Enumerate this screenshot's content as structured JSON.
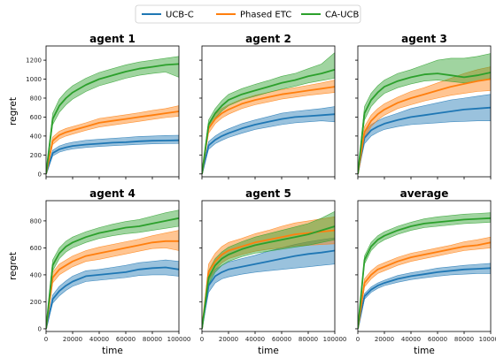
{
  "chart_data": {
    "type": "line",
    "legend": {
      "placement": "top-center",
      "entries": [
        {
          "name": "UCB-C",
          "color": "#1f77b4"
        },
        {
          "name": "Phased ETC",
          "color": "#ff7f0e"
        },
        {
          "name": "CA-UCB",
          "color": "#2ca02c"
        }
      ]
    },
    "xlabel": "time",
    "ylabel": "regret",
    "xlim": [
      0,
      100000
    ],
    "x_ticks": [
      0,
      20000,
      40000,
      60000,
      80000,
      100000
    ],
    "x_tick_labels": [
      "0",
      "20000",
      "40000",
      "60000",
      "80000",
      "100000"
    ],
    "shared_y_rows": true,
    "x": [
      0,
      5000,
      10000,
      15000,
      20000,
      30000,
      40000,
      50000,
      60000,
      70000,
      80000,
      90000,
      100000
    ],
    "rows": [
      {
        "ylim": [
          -30,
          1350
        ],
        "y_ticks": [
          0,
          200,
          400,
          600,
          800,
          1000,
          1200
        ],
        "y_tick_labels": [
          "0",
          "200",
          "400",
          "600",
          "800",
          "1000",
          "1200"
        ]
      },
      {
        "ylim": [
          -20,
          950
        ],
        "y_ticks": [
          0,
          200,
          400,
          600,
          800
        ],
        "y_tick_labels": [
          "0",
          "200",
          "400",
          "600",
          "800"
        ]
      }
    ],
    "panels": [
      {
        "title": "agent 1",
        "row": 0,
        "series": [
          {
            "name": "UCB-C",
            "values": [
              0,
              220,
              260,
              280,
              295,
              310,
              320,
              330,
              335,
              345,
              350,
              352,
              355
            ],
            "lower": [
              0,
              190,
              230,
              250,
              265,
              280,
              290,
              298,
              305,
              312,
              318,
              320,
              322
            ],
            "upper": [
              0,
              250,
              295,
              320,
              335,
              355,
              365,
              375,
              385,
              395,
              400,
              405,
              408
            ]
          },
          {
            "name": "Phased ETC",
            "values": [
              0,
              350,
              410,
              440,
              460,
              500,
              540,
              560,
              580,
              600,
              620,
              640,
              660
            ],
            "lower": [
              0,
              310,
              370,
              400,
              420,
              460,
              495,
              515,
              535,
              555,
              575,
              595,
              610
            ],
            "upper": [
              0,
              390,
              450,
              480,
              500,
              540,
              585,
              605,
              625,
              645,
              670,
              690,
              720
            ]
          },
          {
            "name": "CA-UCB",
            "values": [
              0,
              580,
              720,
              800,
              860,
              940,
              1000,
              1040,
              1080,
              1110,
              1130,
              1150,
              1160
            ],
            "lower": [
              0,
              520,
              650,
              730,
              790,
              870,
              930,
              970,
              1010,
              1040,
              1060,
              1075,
              1020
            ],
            "upper": [
              0,
              640,
              790,
              870,
              930,
              1010,
              1070,
              1110,
              1150,
              1180,
              1200,
              1220,
              1240
            ]
          }
        ]
      },
      {
        "title": "agent 2",
        "row": 0,
        "series": [
          {
            "name": "UCB-C",
            "values": [
              0,
              300,
              360,
              400,
              430,
              480,
              520,
              550,
              580,
              600,
              610,
              620,
              630
            ],
            "lower": [
              0,
              260,
              320,
              355,
              385,
              430,
              470,
              495,
              520,
              540,
              550,
              560,
              550
            ],
            "upper": [
              0,
              340,
              400,
              445,
              475,
              530,
              570,
              605,
              640,
              660,
              675,
              690,
              710
            ]
          },
          {
            "name": "Phased ETC",
            "values": [
              0,
              480,
              580,
              640,
              680,
              740,
              780,
              810,
              840,
              860,
              880,
              900,
              920
            ],
            "lower": [
              0,
              430,
              530,
              590,
              630,
              690,
              730,
              760,
              790,
              810,
              830,
              845,
              860
            ],
            "upper": [
              0,
              530,
              630,
              690,
              730,
              790,
              830,
              860,
              890,
              910,
              935,
              960,
              990
            ]
          },
          {
            "name": "CA-UCB",
            "values": [
              0,
              520,
              640,
              720,
              780,
              840,
              880,
              920,
              960,
              990,
              1030,
              1060,
              1100
            ],
            "lower": [
              0,
              470,
              590,
              665,
              720,
              780,
              820,
              860,
              895,
              925,
              960,
              985,
              1010
            ],
            "upper": [
              0,
              570,
              690,
              775,
              840,
              900,
              945,
              985,
              1030,
              1060,
              1110,
              1160,
              1280
            ]
          }
        ]
      },
      {
        "title": "agent 3",
        "row": 0,
        "series": [
          {
            "name": "UCB-C",
            "values": [
              0,
              380,
              460,
              500,
              530,
              570,
              600,
              620,
              640,
              660,
              680,
              690,
              700
            ],
            "lower": [
              0,
              320,
              400,
              440,
              470,
              500,
              520,
              530,
              540,
              550,
              555,
              560,
              560
            ],
            "upper": [
              0,
              440,
              520,
              560,
              595,
              640,
              690,
              720,
              750,
              780,
              800,
              820,
              840
            ]
          },
          {
            "name": "Phased ETC",
            "values": [
              0,
              440,
              560,
              630,
              680,
              750,
              800,
              840,
              880,
              920,
              950,
              980,
              1000
            ],
            "lower": [
              0,
              380,
              500,
              570,
              620,
              690,
              730,
              770,
              800,
              830,
              850,
              870,
              880
            ],
            "upper": [
              0,
              500,
              620,
              690,
              740,
              810,
              870,
              910,
              960,
              1010,
              1060,
              1100,
              1130
            ]
          },
          {
            "name": "CA-UCB",
            "values": [
              0,
              640,
              780,
              860,
              920,
              980,
              1020,
              1050,
              1060,
              1040,
              1020,
              1040,
              1070
            ],
            "lower": [
              0,
              570,
              710,
              790,
              850,
              910,
              950,
              980,
              990,
              975,
              960,
              980,
              1010
            ],
            "upper": [
              0,
              710,
              850,
              930,
              990,
              1060,
              1100,
              1150,
              1200,
              1220,
              1220,
              1240,
              1270
            ]
          }
        ]
      },
      {
        "title": "agent 4",
        "row": 1,
        "series": [
          {
            "name": "UCB-C",
            "values": [
              0,
              220,
              280,
              320,
              350,
              390,
              400,
              410,
              420,
              440,
              450,
              455,
              440
            ],
            "lower": [
              0,
              190,
              245,
              285,
              315,
              350,
              360,
              370,
              380,
              395,
              400,
              400,
              390
            ],
            "upper": [
              0,
              250,
              315,
              355,
              390,
              430,
              440,
              455,
              470,
              490,
              500,
              510,
              500
            ]
          },
          {
            "name": "Phased ETC",
            "values": [
              0,
              380,
              440,
              470,
              500,
              540,
              560,
              580,
              600,
              620,
              640,
              650,
              650
            ],
            "lower": [
              0,
              340,
              400,
              430,
              460,
              500,
              515,
              535,
              555,
              575,
              595,
              600,
              580
            ],
            "upper": [
              0,
              420,
              480,
              510,
              540,
              580,
              605,
              625,
              645,
              665,
              690,
              710,
              730
            ]
          },
          {
            "name": "CA-UCB",
            "values": [
              0,
              470,
              560,
              610,
              640,
              680,
              710,
              730,
              750,
              760,
              780,
              800,
              820
            ],
            "lower": [
              0,
              430,
              520,
              570,
              600,
              640,
              670,
              690,
              705,
              715,
              730,
              745,
              760
            ],
            "upper": [
              0,
              510,
              600,
              650,
              680,
              720,
              750,
              775,
              795,
              810,
              835,
              860,
              880
            ]
          }
        ]
      },
      {
        "title": "agent 5",
        "row": 1,
        "series": [
          {
            "name": "UCB-C",
            "values": [
              0,
              320,
              390,
              420,
              440,
              460,
              480,
              500,
              520,
              540,
              555,
              565,
              580
            ],
            "lower": [
              0,
              270,
              340,
              370,
              385,
              405,
              420,
              430,
              440,
              450,
              460,
              470,
              480
            ],
            "upper": [
              0,
              370,
              440,
              470,
              495,
              520,
              545,
              575,
              600,
              625,
              645,
              660,
              675
            ]
          },
          {
            "name": "Phased ETC",
            "values": [
              0,
              420,
              500,
              550,
              580,
              610,
              640,
              660,
              680,
              700,
              710,
              720,
              730
            ],
            "lower": [
              0,
              360,
              440,
              490,
              520,
              550,
              575,
              590,
              600,
              615,
              620,
              625,
              630
            ],
            "upper": [
              0,
              480,
              560,
              610,
              640,
              670,
              705,
              730,
              760,
              785,
              800,
              815,
              830
            ]
          },
          {
            "name": "CA-UCB",
            "values": [
              0,
              380,
              470,
              520,
              550,
              590,
              620,
              640,
              660,
              680,
              700,
              730,
              760
            ],
            "lower": [
              0,
              330,
              420,
              470,
              500,
              535,
              560,
              575,
              590,
              605,
              620,
              640,
              660
            ],
            "upper": [
              0,
              430,
              520,
              570,
              605,
              645,
              680,
              705,
              730,
              755,
              780,
              820,
              870
            ]
          }
        ]
      },
      {
        "title": "average",
        "row": 1,
        "series": [
          {
            "name": "UCB-C",
            "values": [
              0,
              240,
              290,
              320,
              340,
              370,
              390,
              405,
              420,
              430,
              440,
              445,
              450
            ],
            "lower": [
              0,
              220,
              270,
              300,
              320,
              345,
              365,
              378,
              390,
              400,
              405,
              410,
              410
            ],
            "upper": [
              0,
              260,
              310,
              340,
              360,
              395,
              415,
              432,
              450,
              460,
              470,
              478,
              485
            ]
          },
          {
            "name": "Phased ETC",
            "values": [
              0,
              340,
              400,
              440,
              460,
              500,
              530,
              550,
              570,
              590,
              610,
              620,
              640
            ],
            "lower": [
              0,
              310,
              370,
              410,
              430,
              470,
              500,
              520,
              540,
              560,
              580,
              590,
              600
            ],
            "upper": [
              0,
              370,
              430,
              470,
              490,
              530,
              560,
              580,
              600,
              620,
              645,
              660,
              680
            ]
          },
          {
            "name": "CA-UCB",
            "values": [
              0,
              510,
              610,
              660,
              690,
              730,
              760,
              780,
              790,
              800,
              810,
              815,
              820
            ],
            "lower": [
              0,
              480,
              580,
              630,
              660,
              700,
              730,
              750,
              760,
              770,
              780,
              785,
              790
            ],
            "upper": [
              0,
              540,
              640,
              690,
              720,
              760,
              790,
              815,
              830,
              840,
              850,
              855,
              860
            ]
          }
        ]
      }
    ]
  }
}
